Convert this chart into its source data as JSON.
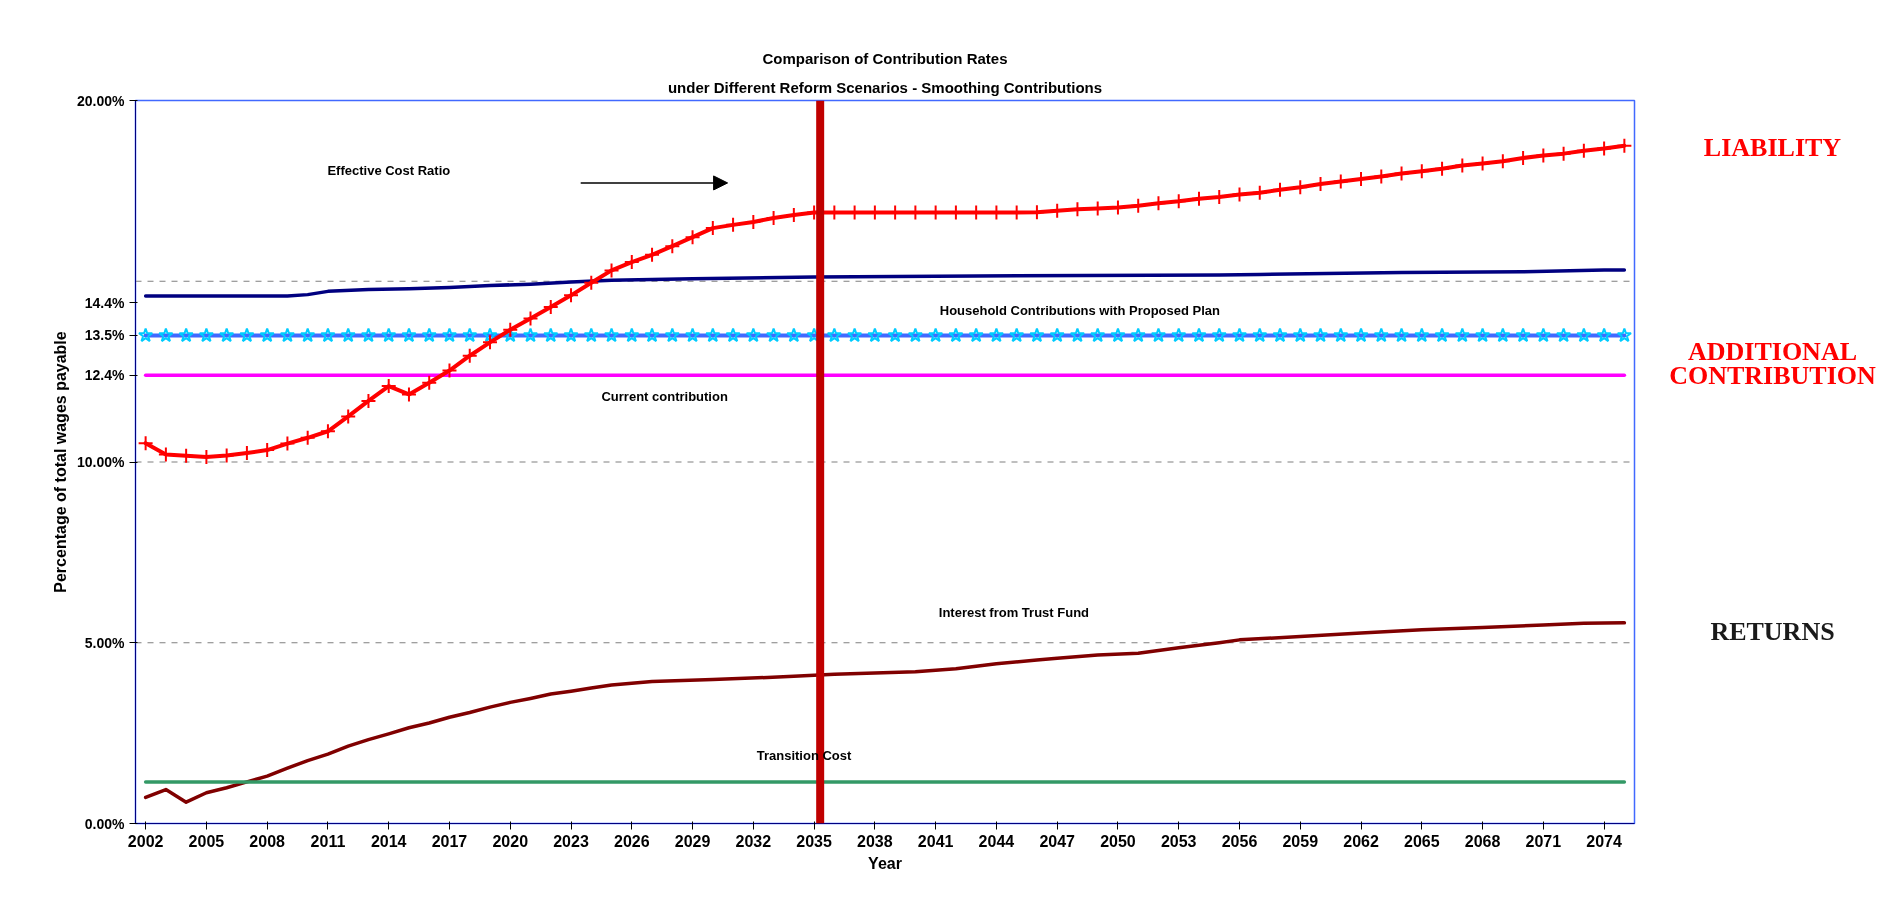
{
  "chart_data": {
    "type": "line",
    "title": "Comparison of Contribution Rates",
    "subtitle": "under Different Reform Scenarios - Smoothing Contributions",
    "xlabel": "Year",
    "ylabel": "Percentage of total wages payable",
    "x": [
      2002,
      2003,
      2004,
      2005,
      2006,
      2007,
      2008,
      2009,
      2010,
      2011,
      2012,
      2013,
      2014,
      2015,
      2016,
      2017,
      2018,
      2019,
      2020,
      2021,
      2022,
      2023,
      2024,
      2025,
      2026,
      2027,
      2028,
      2029,
      2030,
      2031,
      2032,
      2033,
      2034,
      2035,
      2036,
      2037,
      2038,
      2039,
      2040,
      2041,
      2042,
      2043,
      2044,
      2045,
      2046,
      2047,
      2048,
      2049,
      2050,
      2051,
      2052,
      2053,
      2054,
      2055,
      2056,
      2057,
      2058,
      2059,
      2060,
      2061,
      2062,
      2063,
      2064,
      2065,
      2066,
      2067,
      2068,
      2069,
      2070,
      2071,
      2072,
      2073,
      2074,
      2075
    ],
    "series": [
      {
        "color": "#000080",
        "x": [
          2002,
          2009,
          2010,
          2011,
          2013,
          2015,
          2017,
          2019,
          2021,
          2023,
          2025,
          2027,
          2029,
          2035,
          2045,
          2055,
          2057,
          2064,
          2070,
          2074,
          2075
        ],
        "values": [
          14.59,
          14.59,
          14.63,
          14.72,
          14.77,
          14.79,
          14.83,
          14.88,
          14.92,
          14.98,
          15.03,
          15.05,
          15.07,
          15.12,
          15.15,
          15.17,
          15.19,
          15.24,
          15.26,
          15.31,
          15.31
        ]
      },
      {
        "name": "Household Contributions with Proposed Plan",
        "color": "#4169ff",
        "marker": "star",
        "values": [
          13.5,
          13.5,
          13.5,
          13.5,
          13.5,
          13.5,
          13.5,
          13.5,
          13.5,
          13.5,
          13.5,
          13.5,
          13.5,
          13.5,
          13.5,
          13.5,
          13.5,
          13.5,
          13.5,
          13.5,
          13.5,
          13.5,
          13.5,
          13.5,
          13.5,
          13.5,
          13.5,
          13.5,
          13.5,
          13.5,
          13.5,
          13.5,
          13.5,
          13.5,
          13.5,
          13.5,
          13.5,
          13.5,
          13.5,
          13.5,
          13.5,
          13.5,
          13.5,
          13.5,
          13.5,
          13.5,
          13.5,
          13.5,
          13.5,
          13.5,
          13.5,
          13.5,
          13.5,
          13.5,
          13.5,
          13.5,
          13.5,
          13.5,
          13.5,
          13.5,
          13.5,
          13.5,
          13.5,
          13.5,
          13.5,
          13.5,
          13.5,
          13.5,
          13.5,
          13.5,
          13.5,
          13.5,
          13.5,
          13.5
        ]
      },
      {
        "name": "Current contribution",
        "color": "#ff00ff",
        "x": [
          2002,
          2075
        ],
        "values": [
          12.4,
          12.4
        ]
      },
      {
        "color": "#ff0000",
        "marker": "cross",
        "values": [
          10.52,
          10.21,
          10.17,
          10.14,
          10.18,
          10.25,
          10.33,
          10.51,
          10.67,
          10.85,
          11.26,
          11.69,
          12.1,
          11.87,
          12.19,
          12.53,
          12.94,
          13.31,
          13.66,
          13.97,
          14.29,
          14.61,
          14.96,
          15.3,
          15.53,
          15.73,
          15.97,
          16.22,
          16.47,
          16.56,
          16.64,
          16.75,
          16.83,
          16.9,
          16.9,
          16.9,
          16.9,
          16.9,
          16.9,
          16.9,
          16.9,
          16.9,
          16.9,
          16.9,
          16.91,
          16.95,
          16.99,
          17.01,
          17.04,
          17.09,
          17.16,
          17.21,
          17.28,
          17.33,
          17.4,
          17.45,
          17.53,
          17.6,
          17.69,
          17.76,
          17.83,
          17.9,
          17.98,
          18.04,
          18.11,
          18.2,
          18.26,
          18.32,
          18.41,
          18.48,
          18.53,
          18.61,
          18.67,
          18.75
        ]
      },
      {
        "name": "Interest from Trust Fund",
        "color": "#800000",
        "x": [
          2002,
          2003,
          2004,
          2005,
          2006,
          2007,
          2008,
          2009,
          2010,
          2011,
          2012,
          2013,
          2014,
          2015,
          2016,
          2017,
          2018,
          2019,
          2020,
          2021,
          2022,
          2023,
          2024,
          2025,
          2026,
          2027,
          2030,
          2034,
          2036,
          2040,
          2042,
          2044,
          2046,
          2047,
          2049,
          2051,
          2053,
          2055,
          2056,
          2059,
          2062,
          2065,
          2068,
          2071,
          2073,
          2075
        ],
        "values": [
          0.72,
          0.94,
          0.59,
          0.85,
          0.99,
          1.15,
          1.31,
          1.53,
          1.74,
          1.92,
          2.14,
          2.32,
          2.48,
          2.65,
          2.78,
          2.94,
          3.07,
          3.22,
          3.35,
          3.46,
          3.58,
          3.66,
          3.75,
          3.83,
          3.88,
          3.93,
          3.98,
          4.07,
          4.13,
          4.2,
          4.28,
          4.42,
          4.52,
          4.57,
          4.66,
          4.71,
          4.86,
          5.0,
          5.08,
          5.17,
          5.27,
          5.36,
          5.42,
          5.49,
          5.54,
          5.55
        ]
      },
      {
        "name": "Transition Cost",
        "color": "#339966",
        "x": [
          2002,
          2075
        ],
        "values": [
          1.15,
          1.15
        ]
      }
    ],
    "xlim": [
      2001.5,
      2075.5
    ],
    "xticks": [
      2002,
      2005,
      2008,
      2011,
      2014,
      2017,
      2020,
      2023,
      2026,
      2029,
      2032,
      2035,
      2038,
      2041,
      2044,
      2047,
      2050,
      2053,
      2056,
      2059,
      2062,
      2065,
      2068,
      2071,
      2074
    ],
    "ylim": [
      0,
      20
    ],
    "yticks": [
      {
        "value": 0,
        "label": "0.00%"
      },
      {
        "value": 5,
        "label": "5.00%"
      },
      {
        "value": 10,
        "label": "10.00%"
      },
      {
        "value": 12.4,
        "label": "12.4%"
      },
      {
        "value": 13.5,
        "label": "13.5%"
      },
      {
        "value": 14.4,
        "label": "14.4%"
      },
      {
        "value": 20,
        "label": "20.00%"
      }
    ],
    "ref_lines": [
      {
        "axis": "y",
        "value": 5,
        "color": "#808080",
        "line_style": "dashed"
      },
      {
        "axis": "y",
        "value": 10,
        "color": "#808080",
        "line_style": "dashed"
      },
      {
        "axis": "y",
        "value": 15,
        "color": "#808080",
        "line_style": "dashed"
      },
      {
        "axis": "x",
        "value": 2035.3,
        "color": "#c00000",
        "line_style": "solid"
      }
    ],
    "annotations": [
      "Effective Cost Ratio",
      "LIABILITY",
      "ADDITIONAL CONTRIBUTION",
      "RETURNS"
    ],
    "grid": false
  }
}
